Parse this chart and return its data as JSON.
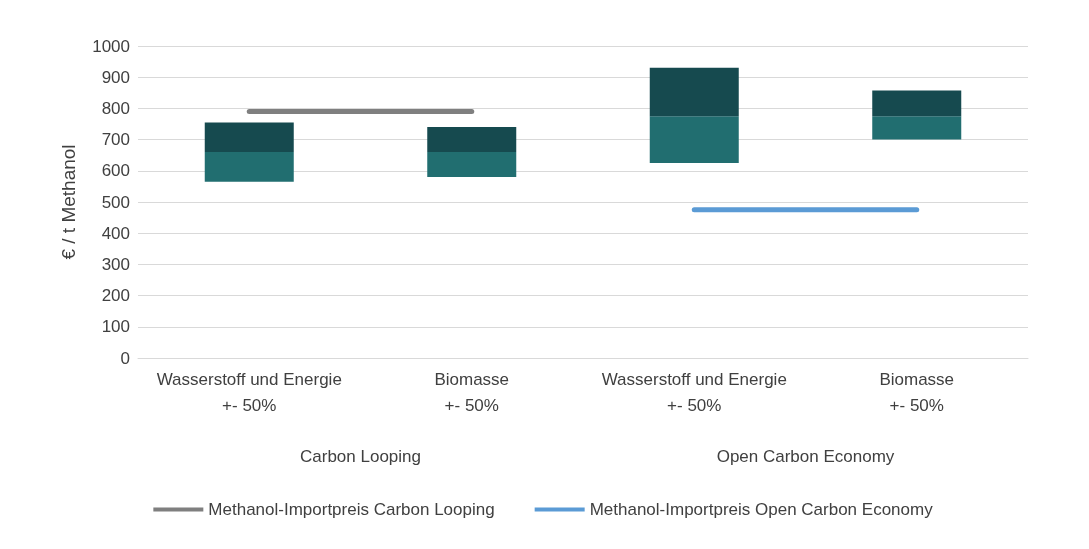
{
  "chart_data": {
    "type": "bar",
    "ylabel": "€ / t Methanol",
    "categories": [
      "Wasserstoff und Energie\n+- 50%",
      "Biomasse\n+- 50%",
      "Wasserstoff und Energie\n+- 50%",
      "Biomasse\n+- 50%"
    ],
    "series": [
      {
        "color": "#216e70",
        "base": [
          565,
          580,
          625,
          700
        ],
        "values": [
          95,
          80,
          150,
          75
        ]
      },
      {
        "color": "#164a4f",
        "base": [
          660,
          660,
          775,
          775
        ],
        "values": [
          95,
          80,
          155,
          82
        ]
      },
      {
        "type": "line",
        "name": "Methanol-Importpreis Carbon Looping",
        "color": "#7f7f7f",
        "values": [
          790,
          790,
          null,
          null
        ]
      },
      {
        "type": "line",
        "name": "Methanol-Importpreis Open Carbon Economy",
        "color": "#5b9bd5",
        "values": [
          null,
          null,
          475,
          475
        ]
      }
    ],
    "annotations": [
      "Carbon Looping",
      "Open Carbon Economy"
    ],
    "ylim": [
      0,
      1000
    ],
    "yticks": [
      0,
      100,
      200,
      300,
      400,
      500,
      600,
      700,
      800,
      900,
      1000
    ],
    "grid": "y",
    "legend": "bottom",
    "marker": "none"
  }
}
